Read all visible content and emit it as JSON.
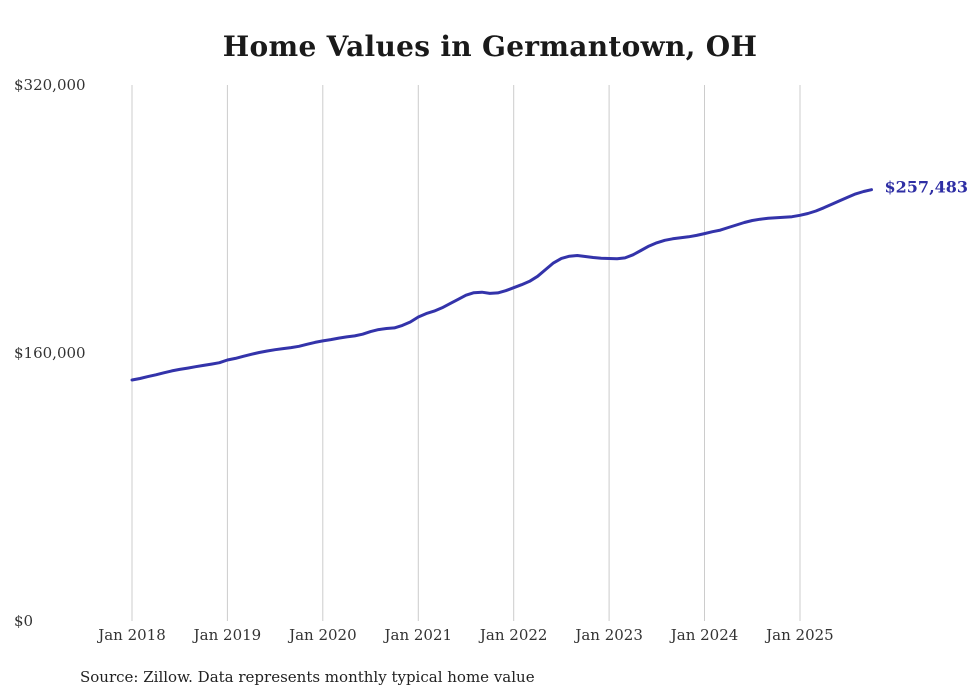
{
  "source": "Source: Zillow. Data represents monthly typical home value",
  "colors": {
    "line": "#3333aa",
    "annotation": "#2e2ea4",
    "grid": "#cccccc",
    "title": "#1a1a1a",
    "tick": "#333333"
  },
  "chart_data": {
    "type": "line",
    "title": "Home Values in Germantown, OH",
    "xlabel": "",
    "ylabel": "",
    "ylim": [
      0,
      320000
    ],
    "grid": "vertical-only",
    "legend": "none",
    "x_start": "Jan 2018",
    "x_interval": "monthly",
    "x_tick_labels": [
      "Jan 2018",
      "Jan 2019",
      "Jan 2020",
      "Jan 2021",
      "Jan 2022",
      "Jan 2023",
      "Jan 2024",
      "Jan 2025"
    ],
    "y_tick_labels": [
      "$0",
      "$160,000",
      "$320,000"
    ],
    "last_value_label": "$257,483",
    "last_value": 257483,
    "series": [
      {
        "name": "Typical home value",
        "values": [
          143900,
          144800,
          145900,
          147000,
          148200,
          149300,
          150200,
          151000,
          151800,
          152600,
          153400,
          154200,
          155800,
          156800,
          158000,
          159200,
          160300,
          161200,
          162000,
          162600,
          163200,
          164000,
          165200,
          166300,
          167200,
          168000,
          168900,
          169600,
          170200,
          171200,
          172800,
          174000,
          174600,
          175000,
          176500,
          178500,
          181500,
          183500,
          185000,
          187000,
          189500,
          192000,
          194500,
          196000,
          196300,
          195600,
          195900,
          197200,
          199000,
          200800,
          202800,
          205800,
          209800,
          213800,
          216500,
          217800,
          218200,
          217600,
          217000,
          216600,
          216400,
          216300,
          216800,
          218600,
          221200,
          223800,
          225800,
          227300,
          228200,
          228800,
          229400,
          230200,
          231300,
          232400,
          233400,
          234900,
          236400,
          237900,
          239100,
          239900,
          240400,
          240700,
          241000,
          241400,
          242200,
          243300,
          244800,
          246700,
          248800,
          250900,
          253000,
          255000,
          256400,
          257483
        ]
      }
    ]
  }
}
